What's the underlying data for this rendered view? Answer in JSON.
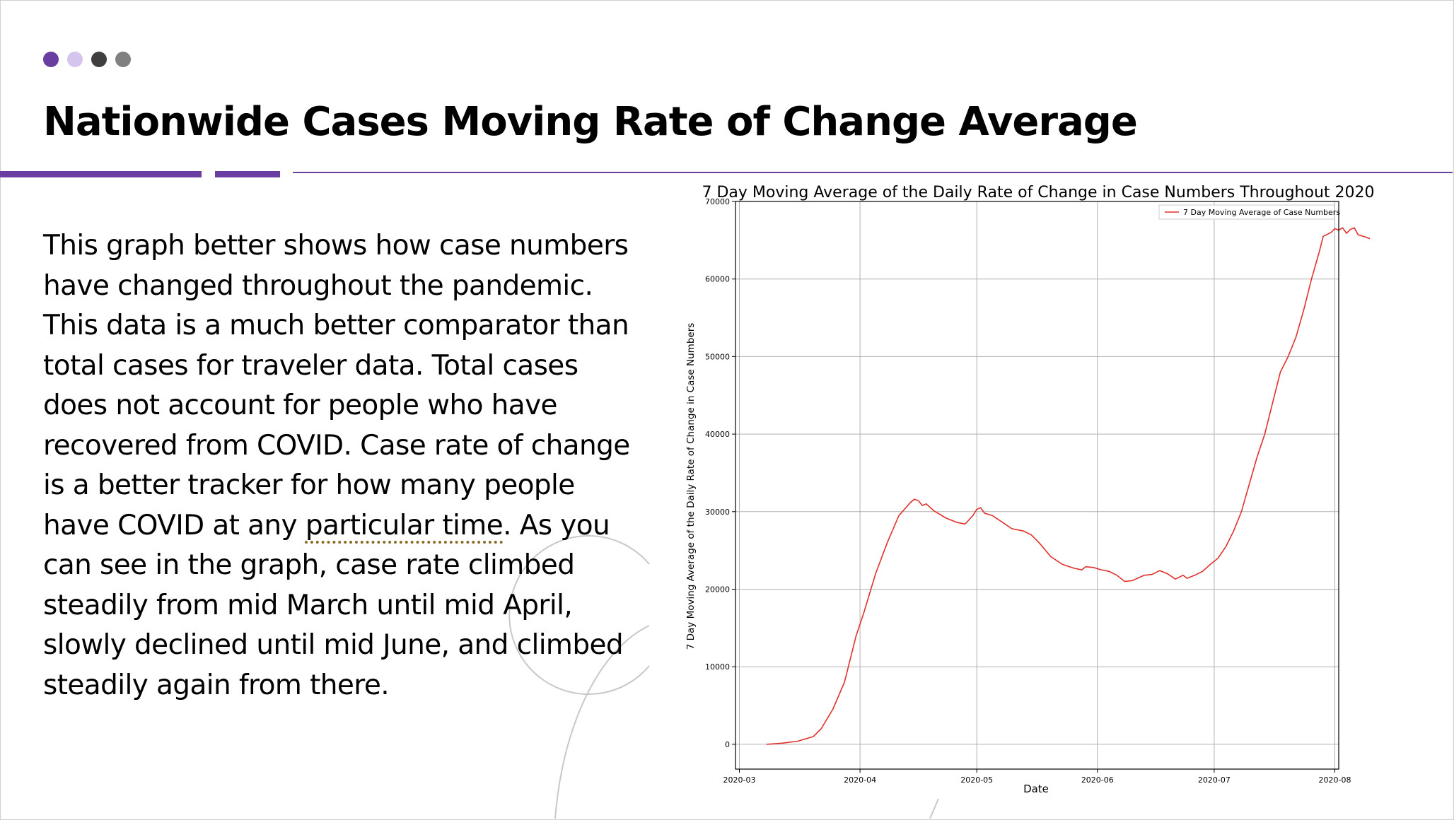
{
  "slide": {
    "title": "Nationwide Cases Moving Rate of Change Average",
    "body_before": "This graph better shows how case numbers have changed throughout the pandemic.  This data is a much better comparator than total cases for traveler data.  Total cases does not account for people who have recovered from COVID.  Case rate of change is a better tracker for how many people have COVID at any ",
    "body_flagged": "particular time",
    "body_after": ".  As you can see in the graph, case rate climbed steadily from mid March until mid April, slowly declined until mid June, and climbed steadily again from there."
  },
  "colors": {
    "accent": "#6a3ea1",
    "dots": [
      "#6a3ea1",
      "#d5c4ec",
      "#3f3f3f",
      "#808080"
    ],
    "series": "#e0312b",
    "grid": "#b0b0b0"
  },
  "chart_data": {
    "type": "line",
    "title": "7 Day Moving Average of the Daily Rate of Change in Case Numbers Throughout 2020",
    "xlabel": "Date",
    "ylabel": "7 Day Moving Average of the Daily Rate of Change in Case Numbers",
    "x_ticks": [
      "2020-03",
      "2020-04",
      "2020-05",
      "2020-06",
      "2020-07",
      "2020-08"
    ],
    "y_ticks": [
      0,
      10000,
      20000,
      30000,
      40000,
      50000,
      60000,
      70000
    ],
    "xlim": [
      "2020-02-29",
      "2020-08-02"
    ],
    "ylim": [
      -3200,
      70000
    ],
    "grid": true,
    "legend_position": "top-right",
    "series": [
      {
        "name": "7 Day Moving Average of Case Numbers",
        "color": "#e0312b",
        "points": [
          [
            "2020-03-08",
            0
          ],
          [
            "2020-03-12",
            150
          ],
          [
            "2020-03-16",
            400
          ],
          [
            "2020-03-20",
            1000
          ],
          [
            "2020-03-22",
            2000
          ],
          [
            "2020-03-25",
            4500
          ],
          [
            "2020-03-28",
            8000
          ],
          [
            "2020-03-31",
            14000
          ],
          [
            "2020-04-02",
            17000
          ],
          [
            "2020-04-05",
            22000
          ],
          [
            "2020-04-08",
            26000
          ],
          [
            "2020-04-11",
            29500
          ],
          [
            "2020-04-14",
            31200
          ],
          [
            "2020-04-15",
            31600
          ],
          [
            "2020-04-16",
            31400
          ],
          [
            "2020-04-17",
            30800
          ],
          [
            "2020-04-18",
            31000
          ],
          [
            "2020-04-20",
            30100
          ],
          [
            "2020-04-23",
            29200
          ],
          [
            "2020-04-26",
            28600
          ],
          [
            "2020-04-28",
            28400
          ],
          [
            "2020-04-30",
            29500
          ],
          [
            "2020-05-01",
            30300
          ],
          [
            "2020-05-02",
            30500
          ],
          [
            "2020-05-03",
            29800
          ],
          [
            "2020-05-05",
            29500
          ],
          [
            "2020-05-08",
            28500
          ],
          [
            "2020-05-10",
            27800
          ],
          [
            "2020-05-13",
            27500
          ],
          [
            "2020-05-15",
            27000
          ],
          [
            "2020-05-17",
            26000
          ],
          [
            "2020-05-20",
            24200
          ],
          [
            "2020-05-23",
            23200
          ],
          [
            "2020-05-26",
            22700
          ],
          [
            "2020-05-28",
            22500
          ],
          [
            "2020-05-29",
            22900
          ],
          [
            "2020-05-31",
            22800
          ],
          [
            "2020-06-02",
            22500
          ],
          [
            "2020-06-04",
            22300
          ],
          [
            "2020-06-06",
            21800
          ],
          [
            "2020-06-08",
            21000
          ],
          [
            "2020-06-10",
            21100
          ],
          [
            "2020-06-13",
            21800
          ],
          [
            "2020-06-15",
            21900
          ],
          [
            "2020-06-17",
            22400
          ],
          [
            "2020-06-19",
            22000
          ],
          [
            "2020-06-21",
            21300
          ],
          [
            "2020-06-23",
            21800
          ],
          [
            "2020-06-24",
            21400
          ],
          [
            "2020-06-26",
            21800
          ],
          [
            "2020-06-28",
            22300
          ],
          [
            "2020-06-30",
            23200
          ],
          [
            "2020-07-02",
            24000
          ],
          [
            "2020-07-04",
            25500
          ],
          [
            "2020-07-06",
            27500
          ],
          [
            "2020-07-08",
            30000
          ],
          [
            "2020-07-10",
            33500
          ],
          [
            "2020-07-12",
            37000
          ],
          [
            "2020-07-14",
            40000
          ],
          [
            "2020-07-16",
            44000
          ],
          [
            "2020-07-18",
            48000
          ],
          [
            "2020-07-20",
            50000
          ],
          [
            "2020-07-22",
            52500
          ],
          [
            "2020-07-24",
            56000
          ],
          [
            "2020-07-26",
            60000
          ],
          [
            "2020-07-28",
            63500
          ],
          [
            "2020-07-29",
            65500
          ],
          [
            "2020-07-31",
            66000
          ],
          [
            "2020-08-01",
            66500
          ],
          [
            "2020-08-02",
            66300
          ],
          [
            "2020-08-03",
            66600
          ],
          [
            "2020-08-04",
            65900
          ],
          [
            "2020-08-05",
            66400
          ],
          [
            "2020-08-06",
            66600
          ],
          [
            "2020-08-07",
            65700
          ],
          [
            "2020-08-09",
            65400
          ],
          [
            "2020-08-10",
            65200
          ]
        ]
      }
    ]
  }
}
